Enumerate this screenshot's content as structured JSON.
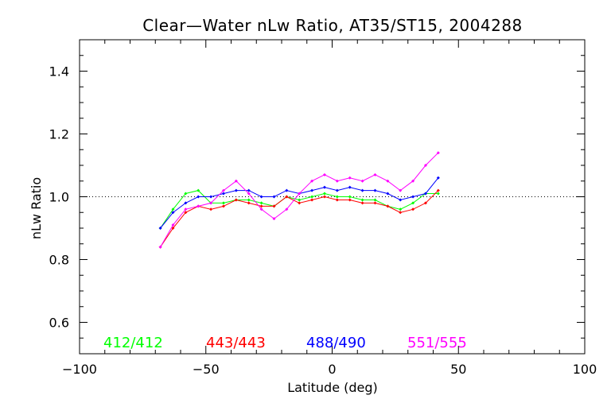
{
  "chart_data": {
    "type": "line",
    "title": "Clear—Water nLw Ratio, AT35/ST15, 2004288",
    "xlabel": "Latitude (deg)",
    "ylabel": "nLw Ratio",
    "xlim": [
      -100,
      100
    ],
    "ylim": [
      0.5,
      1.5
    ],
    "xticks": [
      -100,
      -50,
      0,
      50,
      100
    ],
    "xtick_labels": [
      "−100",
      "−50",
      "0",
      "50",
      "100"
    ],
    "yticks": [
      0.6,
      0.8,
      1.0,
      1.2,
      1.4
    ],
    "ytick_labels": [
      "0.6",
      "0.8",
      "1.0",
      "1.2",
      "1.4"
    ],
    "reference_line": 1.0,
    "grid": false,
    "legend_placement": "bottom",
    "x": [
      -68,
      -63,
      -58,
      -53,
      -48,
      -43,
      -38,
      -33,
      -28,
      -23,
      -18,
      -13,
      -8,
      -3,
      2,
      7,
      12,
      17,
      22,
      27,
      32,
      37,
      42
    ],
    "series": [
      {
        "name": "412/412",
        "color": "#00ff00",
        "values": [
          0.9,
          0.96,
          1.01,
          1.02,
          0.98,
          0.98,
          0.99,
          0.99,
          0.98,
          0.97,
          1.0,
          0.99,
          1.0,
          1.01,
          1.0,
          1.0,
          0.99,
          0.99,
          0.97,
          0.96,
          0.98,
          1.01,
          1.01
        ]
      },
      {
        "name": "443/443",
        "color": "#ff0000",
        "values": [
          0.84,
          0.9,
          0.95,
          0.97,
          0.96,
          0.97,
          0.99,
          0.98,
          0.97,
          0.97,
          1.0,
          0.98,
          0.99,
          1.0,
          0.99,
          0.99,
          0.98,
          0.98,
          0.97,
          0.95,
          0.96,
          0.98,
          1.02
        ]
      },
      {
        "name": "488/490",
        "color": "#0000ff",
        "values": [
          0.9,
          0.95,
          0.98,
          1.0,
          1.0,
          1.01,
          1.02,
          1.02,
          1.0,
          1.0,
          1.02,
          1.01,
          1.02,
          1.03,
          1.02,
          1.03,
          1.02,
          1.02,
          1.01,
          0.99,
          1.0,
          1.01,
          1.06
        ]
      },
      {
        "name": "551/555",
        "color": "#ff00ff",
        "values": [
          0.84,
          0.91,
          0.96,
          0.97,
          0.98,
          1.02,
          1.05,
          1.01,
          0.96,
          0.93,
          0.96,
          1.01,
          1.05,
          1.07,
          1.05,
          1.06,
          1.05,
          1.07,
          1.05,
          1.02,
          1.05,
          1.1,
          1.14
        ]
      }
    ]
  }
}
